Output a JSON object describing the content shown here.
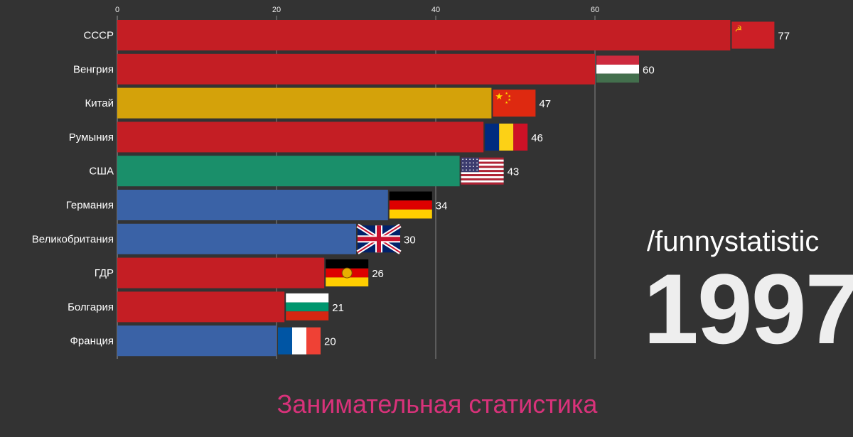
{
  "chart_data": {
    "type": "bar",
    "orientation": "horizontal",
    "categories": [
      "СССР",
      "Венгрия",
      "Китай",
      "Румыния",
      "США",
      "Германия",
      "Великобритания",
      "ГДР",
      "Болгария",
      "Франция"
    ],
    "values": [
      77,
      60,
      47,
      46,
      43,
      34,
      30,
      26,
      21,
      20
    ],
    "colors": [
      "#c41e24",
      "#c41e24",
      "#d4a20a",
      "#c41e24",
      "#1a8f6a",
      "#3a62a6",
      "#3a62a6",
      "#c41e24",
      "#c41e24",
      "#3a62a6"
    ],
    "flags": [
      "ussr-flag",
      "hungary-flag",
      "china-flag",
      "romania-flag",
      "usa-flag",
      "germany-flag",
      "uk-flag",
      "gdr-flag",
      "bulgaria-flag",
      "france-flag"
    ],
    "xticks": [
      0,
      20,
      40,
      60
    ],
    "xlim": [
      0,
      80
    ],
    "grid": true,
    "background": "#333333"
  },
  "watermark": "/funnystatistic",
  "year": "1997",
  "footer": "Занимательная статистика"
}
